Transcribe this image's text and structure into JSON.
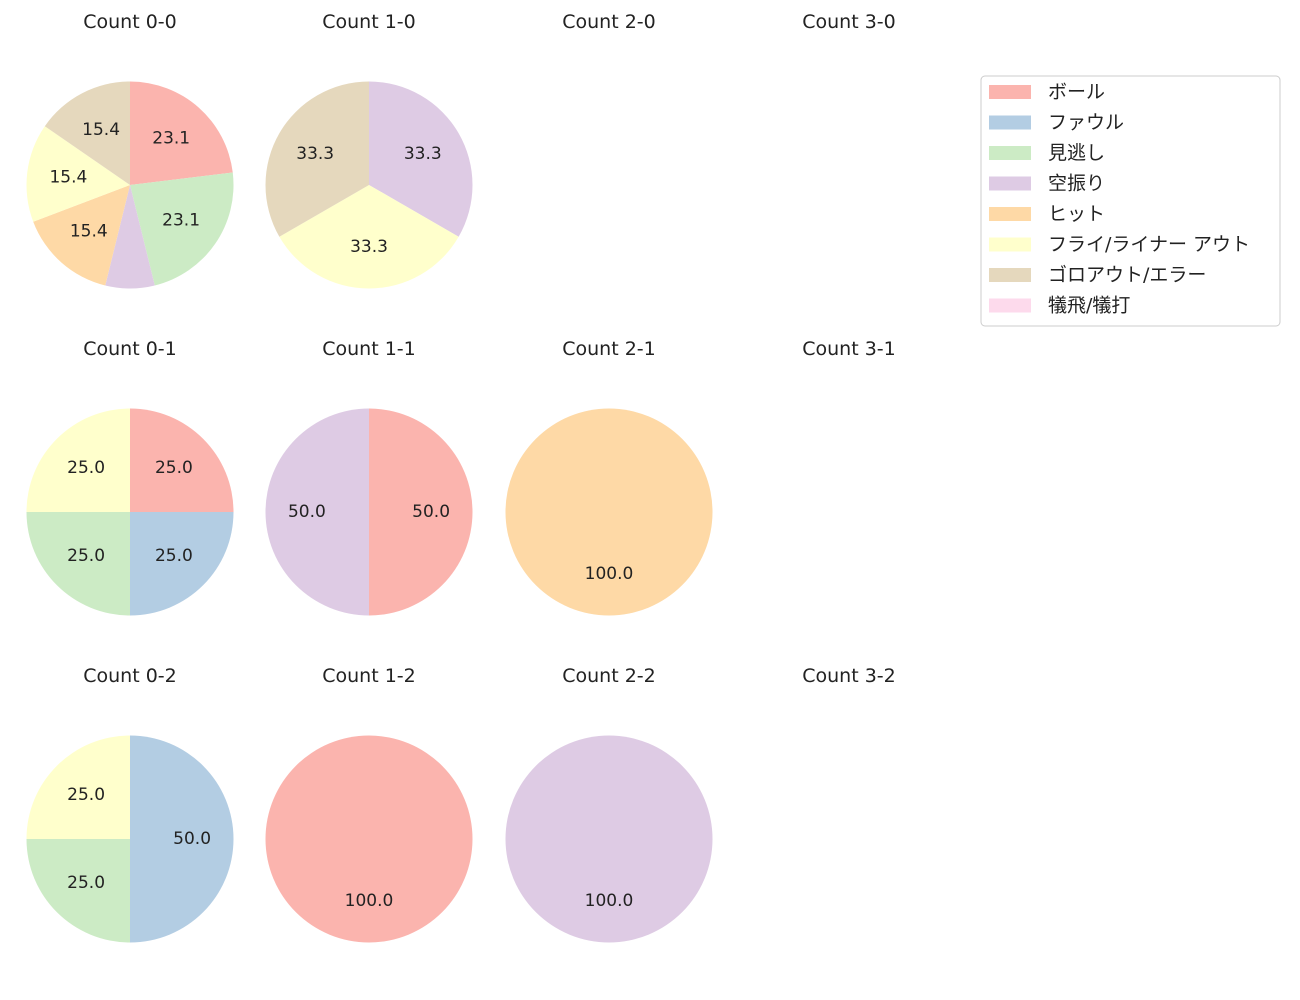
{
  "chart_data": {
    "type": "pie",
    "legend": {
      "placement": "top-right",
      "entries": [
        {
          "label": "ボール",
          "color": "#fbb4ae"
        },
        {
          "label": "ファウル",
          "color": "#b3cde3"
        },
        {
          "label": "見逃し",
          "color": "#ccebc5"
        },
        {
          "label": "空振り",
          "color": "#decbe4"
        },
        {
          "label": "ヒット",
          "color": "#fed9a6"
        },
        {
          "label": "フライ/ライナー アウト",
          "color": "#ffffcc"
        },
        {
          "label": "ゴロアウト/エラー",
          "color": "#e5d8bd"
        },
        {
          "label": "犠飛/犠打",
          "color": "#fddaec"
        }
      ]
    },
    "charts": [
      {
        "title": "Count 0-0",
        "row": 0,
        "col": 0,
        "values": [
          23.1,
          0,
          23.1,
          7.7,
          15.4,
          15.4,
          15.4,
          0
        ],
        "labels": [
          "23.1",
          "",
          "23.1",
          "",
          "15.4",
          "15.4",
          "15.4",
          ""
        ]
      },
      {
        "title": "Count 1-0",
        "row": 0,
        "col": 1,
        "values": [
          0,
          0,
          0,
          33.3,
          0,
          33.3,
          33.3,
          0
        ],
        "labels": [
          "",
          "",
          "",
          "33.3",
          "",
          "33.3",
          "33.3",
          ""
        ]
      },
      {
        "title": "Count 2-0",
        "row": 0,
        "col": 2,
        "values": [],
        "labels": []
      },
      {
        "title": "Count 3-0",
        "row": 0,
        "col": 3,
        "values": [],
        "labels": []
      },
      {
        "title": "Count 0-1",
        "row": 1,
        "col": 0,
        "values": [
          25.0,
          25.0,
          25.0,
          0,
          0,
          25.0,
          0,
          0
        ],
        "labels": [
          "25.0",
          "25.0",
          "25.0",
          "",
          "",
          "25.0",
          "",
          ""
        ]
      },
      {
        "title": "Count 1-1",
        "row": 1,
        "col": 1,
        "values": [
          50.0,
          0,
          0,
          50.0,
          0,
          0,
          0,
          0
        ],
        "labels": [
          "50.0",
          "",
          "",
          "50.0",
          "",
          "",
          "",
          ""
        ]
      },
      {
        "title": "Count 2-1",
        "row": 1,
        "col": 2,
        "values": [
          0,
          0,
          0,
          0,
          100.0,
          0,
          0,
          0
        ],
        "labels": [
          "",
          "",
          "",
          "",
          "100.0",
          "",
          "",
          ""
        ]
      },
      {
        "title": "Count 3-1",
        "row": 1,
        "col": 3,
        "values": [],
        "labels": []
      },
      {
        "title": "Count 0-2",
        "row": 2,
        "col": 0,
        "values": [
          0,
          50.0,
          25.0,
          0,
          0,
          25.0,
          0,
          0
        ],
        "labels": [
          "",
          "50.0",
          "25.0",
          "",
          "",
          "25.0",
          "",
          ""
        ]
      },
      {
        "title": "Count 1-2",
        "row": 2,
        "col": 1,
        "values": [
          100.0,
          0,
          0,
          0,
          0,
          0,
          0,
          0
        ],
        "labels": [
          "100.0",
          "",
          "",
          "",
          "",
          "",
          "",
          ""
        ]
      },
      {
        "title": "Count 2-2",
        "row": 2,
        "col": 2,
        "values": [
          0,
          0,
          0,
          100.0,
          0,
          0,
          0,
          0
        ],
        "labels": [
          "",
          "",
          "",
          "100.0",
          "",
          "",
          "",
          ""
        ]
      },
      {
        "title": "Count 3-2",
        "row": 2,
        "col": 3,
        "values": [],
        "labels": []
      }
    ]
  }
}
